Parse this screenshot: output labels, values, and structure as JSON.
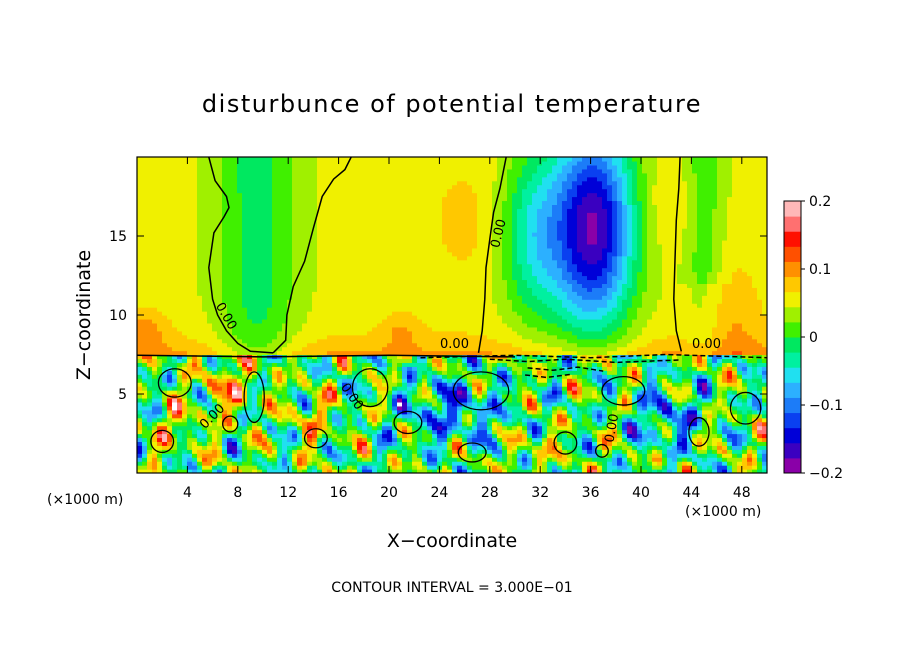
{
  "chart_data": {
    "type": "heatmap",
    "title": "disturbunce of potential temperature",
    "xlabel": "X−coordinate",
    "ylabel": "Z−coordinate",
    "x_unit_label": "(×1000 m)",
    "z_unit_label": "(×1000 m)",
    "xlim": [
      0,
      50
    ],
    "zlim": [
      0,
      20
    ],
    "x_ticks": [
      4,
      8,
      12,
      16,
      20,
      24,
      28,
      32,
      36,
      40,
      44,
      48
    ],
    "x_tick_labels": [
      "4",
      "8",
      "12",
      "16",
      "20",
      "24",
      "28",
      "32",
      "36",
      "40",
      "44",
      "48"
    ],
    "z_ticks": [
      5,
      10,
      15
    ],
    "z_tick_labels": [
      "5",
      "10",
      "15"
    ],
    "colorbar": {
      "range": [
        -0.2,
        0.2
      ],
      "ticks": [
        0.2,
        0.1,
        0,
        -0.1,
        -0.2
      ],
      "tick_labels": [
        "0.2",
        "0.1",
        "0",
        "−0.1",
        "−0.2"
      ],
      "colors": [
        "#8a00a8",
        "#3a00c0",
        "#0000d8",
        "#0a40f0",
        "#1c7cf8",
        "#2cb0ff",
        "#20e0f0",
        "#00f0a0",
        "#00e860",
        "#40f000",
        "#a0f000",
        "#f0f000",
        "#ffc800",
        "#ff9000",
        "#ff5000",
        "#ff1000",
        "#ff7070",
        "#ffb8b8"
      ]
    },
    "contour_label": "0.00",
    "contour_interval_text": "CONTOUR INTERVAL = 3.000E−01"
  }
}
